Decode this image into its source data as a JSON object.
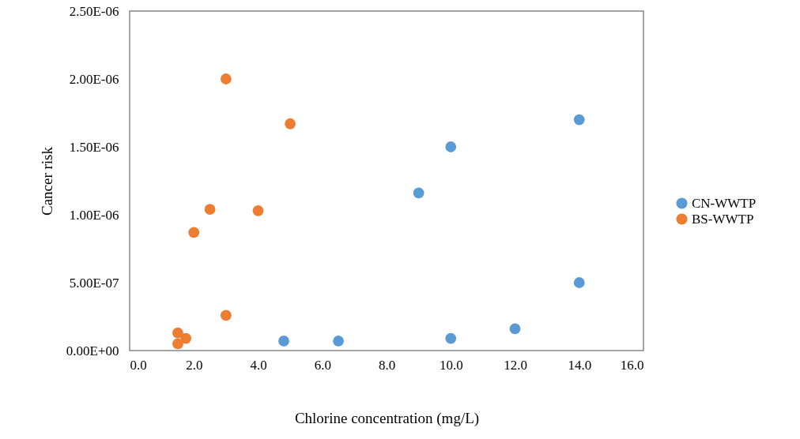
{
  "chart_data": {
    "type": "scatter",
    "xlabel": "Chlorine concentration (mg/L)",
    "ylabel": "Cancer risk",
    "xlim": [
      0,
      16
    ],
    "xticks": [
      {
        "value": 0,
        "label": "0.0"
      },
      {
        "value": 2,
        "label": "2.0"
      },
      {
        "value": 4,
        "label": "4.0"
      },
      {
        "value": 6,
        "label": "6.0"
      },
      {
        "value": 8,
        "label": "8.0"
      },
      {
        "value": 10,
        "label": "10.0"
      },
      {
        "value": 12,
        "label": "12.0"
      },
      {
        "value": 14,
        "label": "14.0"
      },
      {
        "value": 16,
        "label": "16.0"
      }
    ],
    "ylim": [
      0,
      2.5e-06
    ],
    "yticks": [
      {
        "value": 0,
        "label": "0.00E+00"
      },
      {
        "value": 5e-07,
        "label": "5.00E-07"
      },
      {
        "value": 1e-06,
        "label": "1.00E-06"
      },
      {
        "value": 1.5e-06,
        "label": "1.50E-06"
      },
      {
        "value": 2e-06,
        "label": "2.00E-06"
      },
      {
        "value": 2.5e-06,
        "label": "2.50E-06"
      }
    ],
    "series": [
      {
        "name": "CN-WWTP",
        "color": "#5b9bd5",
        "x": [
          14,
          10,
          9,
          14,
          12,
          10,
          6.5,
          4.8
        ],
        "values": [
          1.7e-06,
          1.5e-06,
          1.16e-06,
          5e-07,
          1.6e-07,
          9e-08,
          7e-08,
          7e-08
        ]
      },
      {
        "name": "BS-WWTP",
        "color": "#ed7d31",
        "x": [
          3,
          5,
          2.5,
          4,
          2,
          3,
          1.5,
          1.75,
          1.5
        ],
        "values": [
          2e-06,
          1.67e-06,
          1.04e-06,
          1.03e-06,
          8.7e-07,
          2.6e-07,
          1.3e-07,
          9e-08,
          5e-08
        ]
      }
    ],
    "marker": "circle",
    "grid": false,
    "legend": "right"
  }
}
